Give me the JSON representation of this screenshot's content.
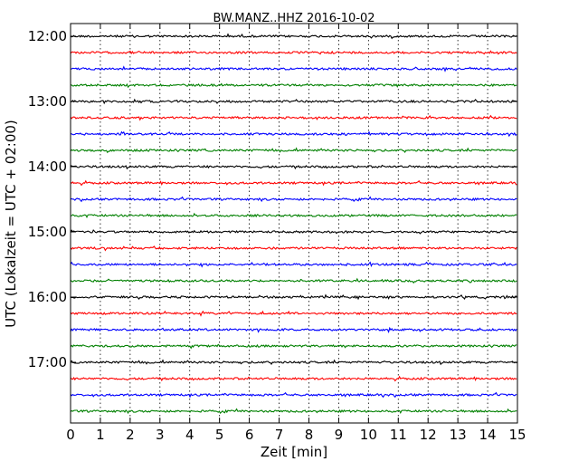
{
  "chart_data": {
    "type": "line",
    "title": "BW.MANZ..HHZ 2016-10-02",
    "xlabel": "Zeit  [min]",
    "ylabel": "UTC (Lokalzeit = UTC + 02:00)",
    "xlim": [
      0,
      15
    ],
    "x_ticks": [
      0,
      1,
      2,
      3,
      4,
      5,
      6,
      7,
      8,
      9,
      10,
      11,
      12,
      13,
      14,
      15
    ],
    "y_tick_labels": [
      "12:00",
      "13:00",
      "14:00",
      "15:00",
      "16:00",
      "17:00"
    ],
    "trace_minutes": 15,
    "grid": "vertical dotted lines at each minute",
    "colors": [
      "#000000",
      "#ff0000",
      "#0000ff",
      "#008000"
    ],
    "series": [
      {
        "start": "12:00",
        "color": "#000000"
      },
      {
        "start": "12:15",
        "color": "#ff0000"
      },
      {
        "start": "12:30",
        "color": "#0000ff"
      },
      {
        "start": "12:45",
        "color": "#008000"
      },
      {
        "start": "13:00",
        "color": "#000000"
      },
      {
        "start": "13:15",
        "color": "#ff0000"
      },
      {
        "start": "13:30",
        "color": "#0000ff"
      },
      {
        "start": "13:45",
        "color": "#008000"
      },
      {
        "start": "14:00",
        "color": "#000000"
      },
      {
        "start": "14:15",
        "color": "#ff0000"
      },
      {
        "start": "14:30",
        "color": "#0000ff"
      },
      {
        "start": "14:45",
        "color": "#008000"
      },
      {
        "start": "15:00",
        "color": "#000000"
      },
      {
        "start": "15:15",
        "color": "#ff0000"
      },
      {
        "start": "15:30",
        "color": "#0000ff"
      },
      {
        "start": "15:45",
        "color": "#008000"
      },
      {
        "start": "16:00",
        "color": "#000000"
      },
      {
        "start": "16:15",
        "color": "#ff0000"
      },
      {
        "start": "16:30",
        "color": "#0000ff"
      },
      {
        "start": "16:45",
        "color": "#008000"
      },
      {
        "start": "17:00",
        "color": "#000000"
      },
      {
        "start": "17:15",
        "color": "#ff0000"
      },
      {
        "start": "17:30",
        "color": "#0000ff"
      },
      {
        "start": "17:45",
        "color": "#008000"
      }
    ]
  }
}
